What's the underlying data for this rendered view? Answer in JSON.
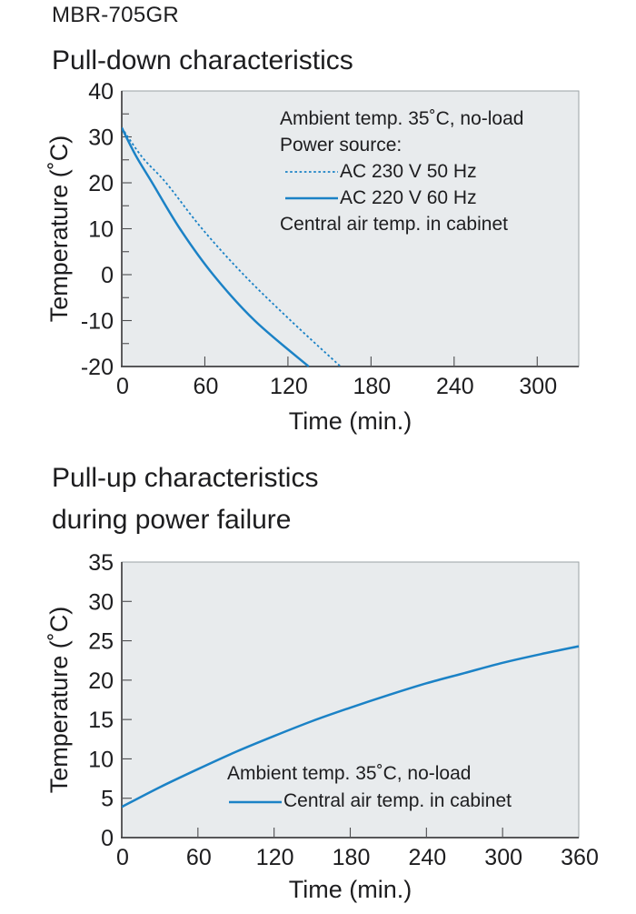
{
  "page": {
    "model": "MBR-705GR"
  },
  "colors": {
    "line_blue": "#1b82c6",
    "plot_bg": "#e8ebed",
    "plot_border": "#9aa0a4",
    "axis": "#414042",
    "tick": "#4d4d4f",
    "text": "#1d1d1f"
  },
  "chart_data": [
    {
      "type": "line",
      "title": "Pull-down characteristics",
      "xlabel": "Time (min.)",
      "ylabel": "Temperature (˚C)",
      "xlim": [
        0,
        330
      ],
      "ylim": [
        -20,
        40
      ],
      "xticks": [
        0,
        60,
        120,
        180,
        240,
        300
      ],
      "yticks": [
        40,
        30,
        20,
        10,
        0,
        -10,
        -20
      ],
      "yticks_minor": [
        35,
        25,
        15,
        5,
        -5,
        -15
      ],
      "grid": false,
      "legend_position": "inside-top-right",
      "legend": {
        "header": [
          "Ambient temp. 35˚C, no-load",
          "Power source:"
        ],
        "entries": [
          {
            "label": "AC 230 V 50 Hz",
            "style": "dotted"
          },
          {
            "label": "AC 220 V 60 Hz",
            "style": "solid"
          }
        ],
        "footer": "Central air temp. in cabinet"
      },
      "series": [
        {
          "name": "AC 230 V 50 Hz",
          "style": "dotted",
          "points": [
            [
              0,
              32
            ],
            [
              15,
              25.5
            ],
            [
              32,
              20
            ],
            [
              58,
              10
            ],
            [
              88,
              0
            ],
            [
              122,
              -10
            ],
            [
              158,
              -20
            ]
          ]
        },
        {
          "name": "AC 220 V 60 Hz",
          "style": "solid",
          "points": [
            [
              0,
              32
            ],
            [
              10,
              26
            ],
            [
              22,
              20
            ],
            [
              42,
              10
            ],
            [
              66,
              0
            ],
            [
              96,
              -10
            ],
            [
              135,
              -20
            ]
          ]
        }
      ]
    },
    {
      "type": "line",
      "title": "Pull-up characteristics during power failure",
      "title_lines": [
        "Pull-up characteristics",
        "during power failure"
      ],
      "xlabel": "Time (min.)",
      "ylabel": "Temperature (˚C)",
      "xlim": [
        0,
        360
      ],
      "ylim": [
        0,
        35
      ],
      "xticks": [
        0,
        60,
        120,
        180,
        240,
        300,
        360
      ],
      "yticks": [
        35,
        30,
        25,
        20,
        15,
        10,
        5,
        0
      ],
      "yticks_minor": [],
      "grid": false,
      "legend_position": "inside-bottom-center",
      "legend": {
        "header": [
          "Ambient temp. 35˚C, no-load"
        ],
        "entries": [
          {
            "label": "Central air temp. in cabinet",
            "style": "solid"
          }
        ]
      },
      "series": [
        {
          "name": "Central air temp. in cabinet",
          "style": "solid",
          "points": [
            [
              0,
              3.9
            ],
            [
              30,
              6.4
            ],
            [
              60,
              8.7
            ],
            [
              90,
              10.9
            ],
            [
              120,
              12.9
            ],
            [
              150,
              14.8
            ],
            [
              180,
              16.5
            ],
            [
              210,
              18.1
            ],
            [
              240,
              19.6
            ],
            [
              270,
              20.9
            ],
            [
              300,
              22.2
            ],
            [
              330,
              23.3
            ],
            [
              360,
              24.3
            ]
          ]
        }
      ]
    }
  ]
}
